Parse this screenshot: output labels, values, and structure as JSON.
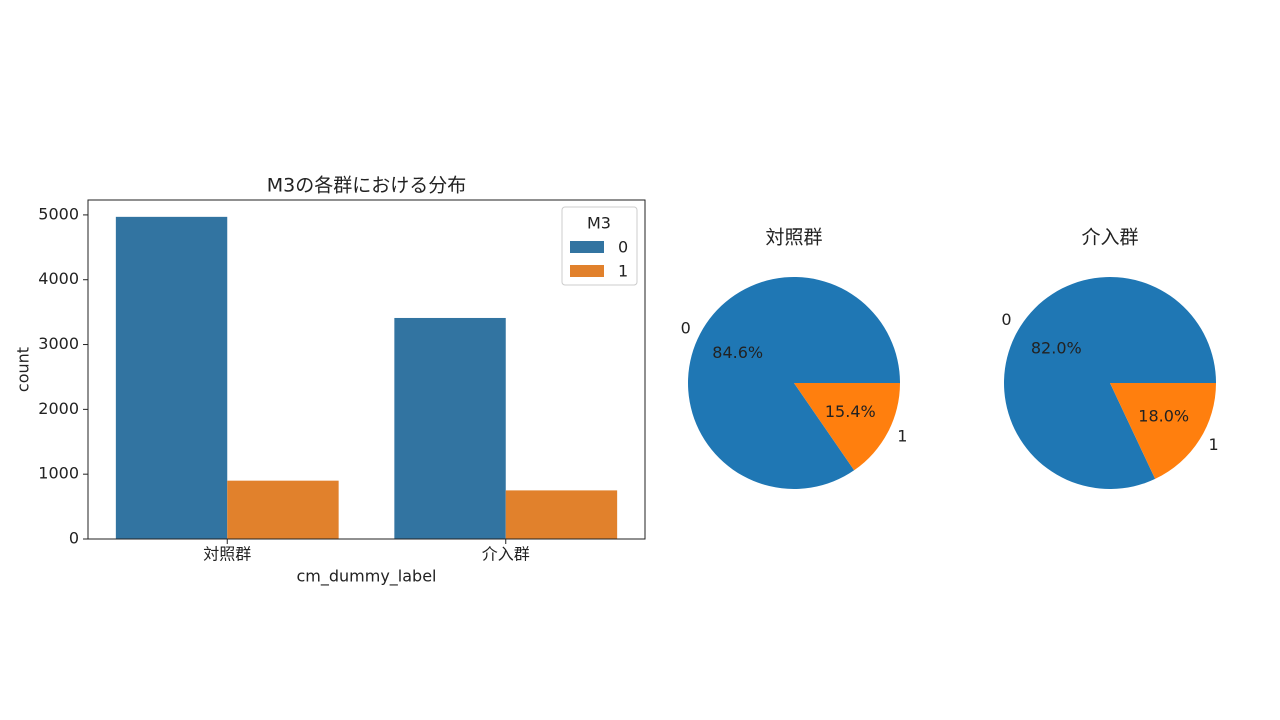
{
  "chart_data": [
    {
      "type": "bar",
      "title": "M3の各群における分布",
      "xlabel": "cm_dummy_label",
      "ylabel": "count",
      "categories": [
        "対照群",
        "介入群"
      ],
      "series": [
        {
          "name": "0",
          "color": "#3274a1",
          "values": [
            4970,
            3410
          ]
        },
        {
          "name": "1",
          "color": "#e1812c",
          "values": [
            900,
            750
          ]
        }
      ],
      "ylim": [
        0,
        5230
      ],
      "yticks": [
        0,
        1000,
        2000,
        3000,
        4000,
        5000
      ],
      "legend_title": "M3",
      "legend": "upper right"
    },
    {
      "type": "pie",
      "title": "対照群",
      "categories": [
        "0",
        "1"
      ],
      "values": [
        84.6,
        15.4
      ],
      "value_labels": [
        "84.6%",
        "15.4%"
      ],
      "colors": [
        "#1f77b4",
        "#ff7f0e"
      ]
    },
    {
      "type": "pie",
      "title": "介入群",
      "categories": [
        "0",
        "1"
      ],
      "values": [
        82.0,
        18.0
      ],
      "value_labels": [
        "82.0%",
        "18.0%"
      ],
      "colors": [
        "#1f77b4",
        "#ff7f0e"
      ]
    }
  ]
}
